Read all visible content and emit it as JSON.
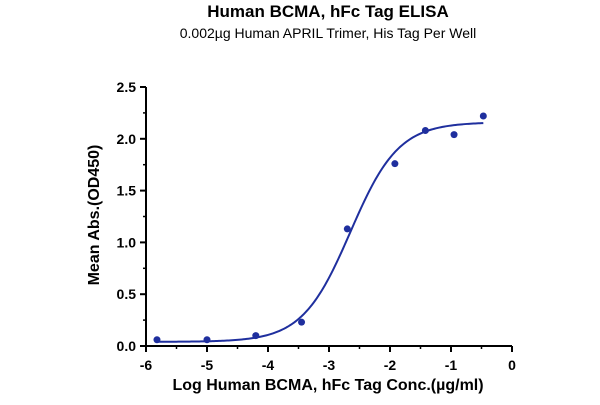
{
  "chart_data": {
    "type": "scatter",
    "title": "Human BCMA, hFc Tag ELISA",
    "subtitle": "0.002µg Human APRIL Trimer, His Tag Per Well",
    "xlabel": "Log Human BCMA, hFc Tag Conc.(µg/ml)",
    "ylabel": "Mean Abs.(OD450)",
    "xlim": [
      -6,
      0
    ],
    "ylim": [
      0,
      2.5
    ],
    "xticks": [
      -6,
      -5,
      -4,
      -3,
      -2,
      -1,
      0
    ],
    "xtick_labels": [
      "-6",
      "-5",
      "-4",
      "-3",
      "-2",
      "-1",
      "0"
    ],
    "yticks": [
      0,
      0.5,
      1.0,
      1.5,
      2.0,
      2.5
    ],
    "ytick_labels": [
      "0.0",
      "0.5",
      "1.0",
      "1.5",
      "2.0",
      "2.5"
    ],
    "grid": false,
    "color": "#1f2f9e",
    "series": [
      {
        "x": [
          -5.82,
          -5.0,
          -4.2,
          -3.45,
          -2.7,
          -1.92,
          -1.42,
          -0.95,
          -0.47
        ],
        "y": [
          0.06,
          0.06,
          0.1,
          0.23,
          1.13,
          1.76,
          2.08,
          2.04,
          2.22
        ]
      }
    ],
    "fit": {
      "type": "4PL",
      "bottom": 0.04,
      "top": 2.16,
      "logEC50": -2.65,
      "hill": 1.1,
      "x_range": [
        -5.82,
        -0.47
      ]
    }
  }
}
